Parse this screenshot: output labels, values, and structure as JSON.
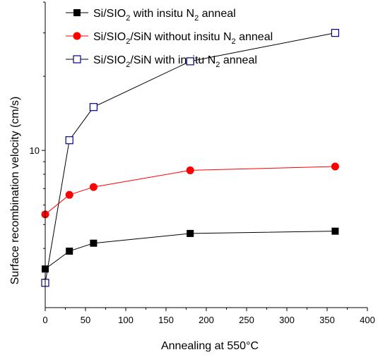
{
  "chart_data": {
    "type": "line",
    "xlabel": "Annealing at 550°C",
    "ylabel": "Surface recombination velocity (cm/s)",
    "xlim": [
      0,
      400
    ],
    "x_ticks": [
      0,
      50,
      100,
      150,
      200,
      250,
      300,
      350,
      400
    ],
    "y_scale": "log",
    "ylim": [
      2.3,
      40
    ],
    "y_tick_labels": [
      {
        "value": 10,
        "label": "10"
      }
    ],
    "grid": false,
    "legend_position": "top-left",
    "series": [
      {
        "name": "Si/SIO2 with insitu N2 anneal",
        "name_parts": [
          "Si/SIO",
          "2",
          " with insitu N",
          "2",
          " anneal"
        ],
        "marker": "filled-square",
        "color": "#000000",
        "marker_color": "#000000",
        "x": [
          0,
          30,
          60,
          180,
          360
        ],
        "y": [
          3.3,
          3.9,
          4.2,
          4.6,
          4.7
        ]
      },
      {
        "name": "Si/SIO2/SiN without insitu N2 anneal",
        "name_parts": [
          "Si/SIO",
          "2",
          "/SiN without insitu N",
          "2",
          " anneal"
        ],
        "marker": "filled-circle",
        "color": "#ff0000",
        "marker_color": "#ff0000",
        "x": [
          0,
          30,
          60,
          180,
          360
        ],
        "y": [
          5.5,
          6.6,
          7.1,
          8.3,
          8.6
        ]
      },
      {
        "name": "Si/SIO2/SiN with insitu N2 anneal",
        "name_parts": [
          "Si/SIO",
          "2",
          "/SiN with insitu N",
          "2",
          " anneal"
        ],
        "marker": "open-square",
        "color": "#000000",
        "marker_color": "#00008b",
        "x": [
          0,
          30,
          60,
          180,
          360
        ],
        "y": [
          2.9,
          11.0,
          15.0,
          23.0,
          30.0
        ]
      }
    ]
  }
}
